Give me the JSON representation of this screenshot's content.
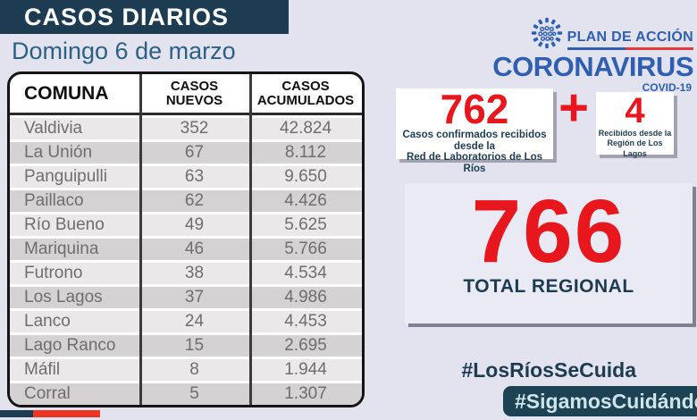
{
  "header": {
    "title": "CASOS DIARIOS",
    "date": "Domingo 6 de marzo"
  },
  "table": {
    "columns": [
      "COMUNA",
      "CASOS NUEVOS",
      "CASOS ACUMULADOS"
    ],
    "rows": [
      {
        "comuna": "Valdivia",
        "nuevos": "352",
        "acumulados": "42.824"
      },
      {
        "comuna": "La Unión",
        "nuevos": "67",
        "acumulados": "8.112"
      },
      {
        "comuna": "Panguipulli",
        "nuevos": "63",
        "acumulados": "9.650"
      },
      {
        "comuna": "Paillaco",
        "nuevos": "62",
        "acumulados": "4.426"
      },
      {
        "comuna": "Río Bueno",
        "nuevos": "49",
        "acumulados": "5.625"
      },
      {
        "comuna": "Mariquina",
        "nuevos": "46",
        "acumulados": "5.766"
      },
      {
        "comuna": "Futrono",
        "nuevos": "38",
        "acumulados": "4.534"
      },
      {
        "comuna": "Los Lagos",
        "nuevos": "37",
        "acumulados": "4.986"
      },
      {
        "comuna": "Lanco",
        "nuevos": "24",
        "acumulados": "4.453"
      },
      {
        "comuna": "Lago Ranco",
        "nuevos": "15",
        "acumulados": "2.695"
      },
      {
        "comuna": "Máfil",
        "nuevos": "8",
        "acumulados": "1.944"
      },
      {
        "comuna": "Corral",
        "nuevos": "5",
        "acumulados": "1.307"
      }
    ]
  },
  "logo": {
    "plan": "PLAN DE ACCIÓN",
    "brand": "CORONAVIRUS",
    "sub": "COVID-19"
  },
  "stats": {
    "lab": {
      "value": "762",
      "caption_line1": "Casos confirmados recibidos desde la",
      "caption_line2": "Red de Laboratorios de Los Ríos"
    },
    "plus": "+",
    "lagos": {
      "value": "4",
      "caption_line1": "Recibidos desde la",
      "caption_line2": "Región de Los Lagos"
    },
    "total": {
      "value": "766",
      "label": "TOTAL REGIONAL"
    }
  },
  "hashtags": {
    "primary": "#LosRíosSeCuida",
    "secondary": "#SigamosCuidándonos"
  },
  "colors": {
    "navy": "#1d3c52",
    "hashtag_box_navy": "#1d4254",
    "red": "#e8161d",
    "bottom_bar_red": "#ee3524",
    "logo_blue": "#2f5fb0",
    "date_blue": "#2c6183",
    "page_background": "#e3e2ef",
    "row_light": "#eae8e9",
    "row_dark": "#d4d2d3",
    "cell_text_gray": "#6e6e6e"
  }
}
